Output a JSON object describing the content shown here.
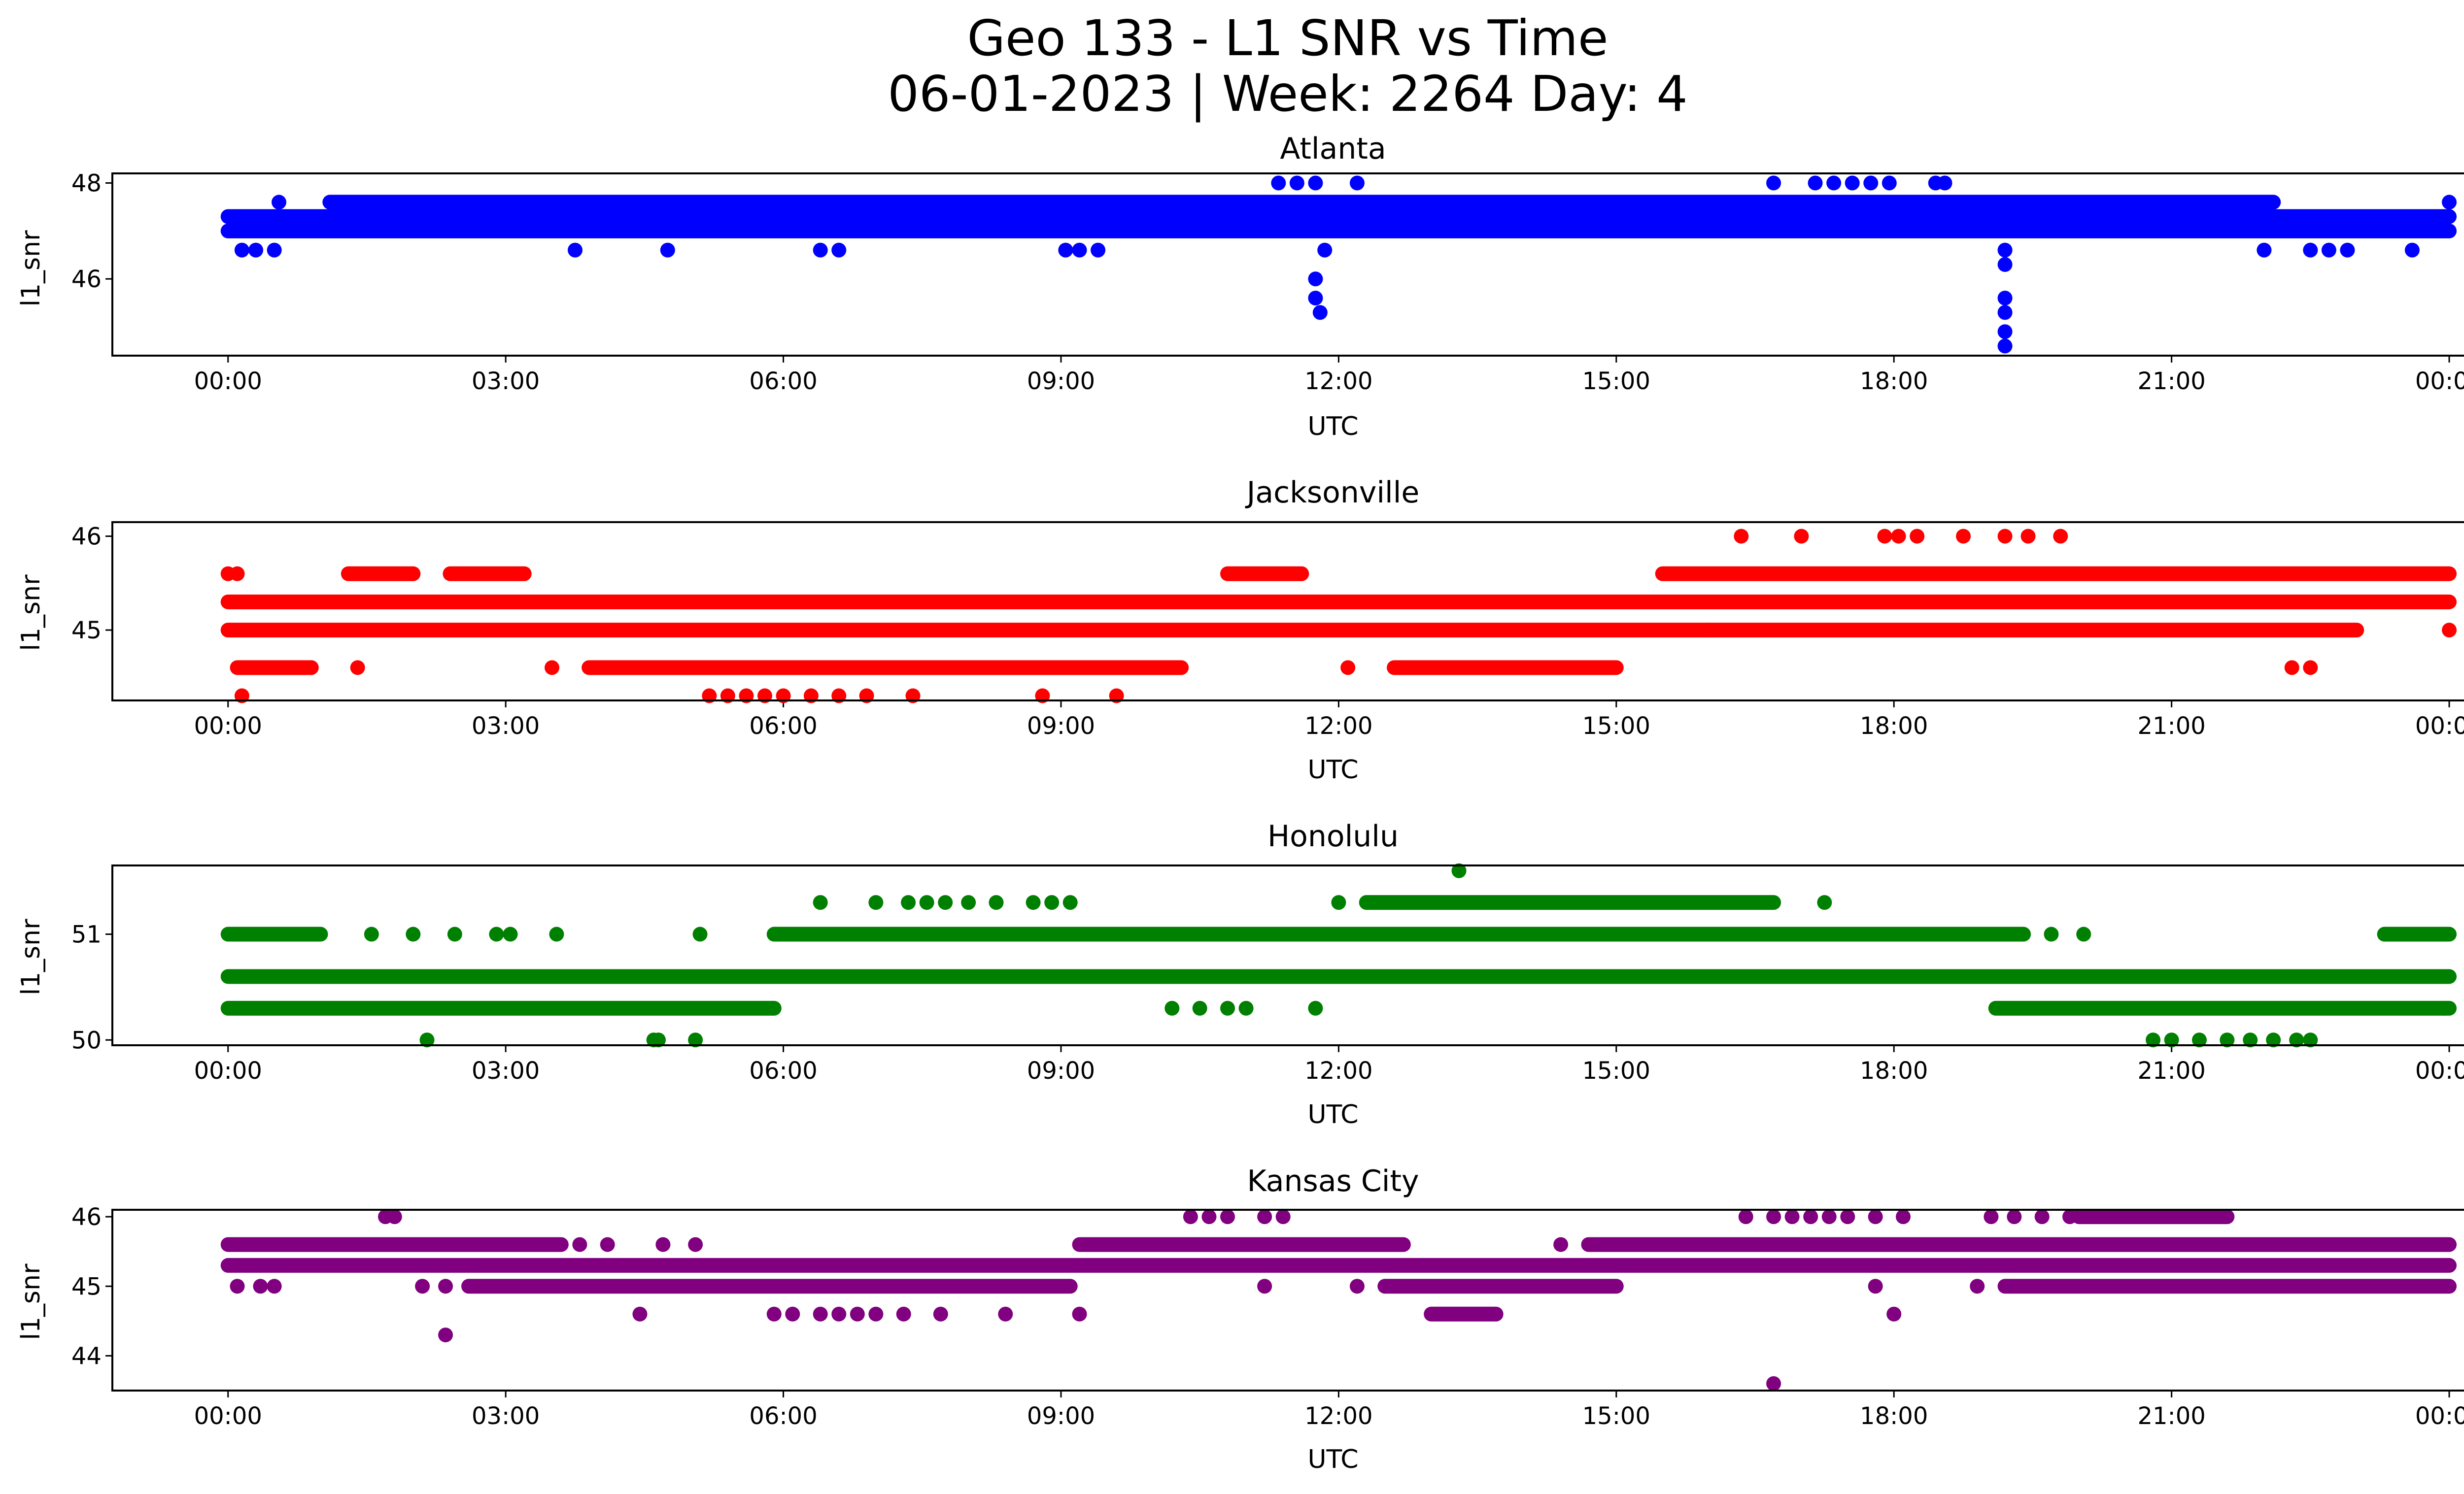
{
  "figure": {
    "title_line1": "Geo 133 - L1 SNR vs Time",
    "title_line2": "06-01-2023 | Week: 2264 Day: 4"
  },
  "chart_data": [
    {
      "type": "scatter",
      "title": "Atlanta",
      "xlabel": "UTC",
      "ylabel": "l1_snr",
      "color": "#0000ff",
      "x_unit": "hours UTC",
      "xlim": [
        -1.25,
        25.15
      ],
      "ylim": [
        44.4,
        48.2
      ],
      "x_ticks": [
        0,
        3,
        6,
        9,
        12,
        15,
        18,
        21,
        24
      ],
      "x_tick_labels": [
        "00:00",
        "03:00",
        "06:00",
        "09:00",
        "12:00",
        "15:00",
        "18:00",
        "21:00",
        "00:00"
      ],
      "y_ticks": [
        46,
        48
      ],
      "y_tick_labels": [
        "46",
        "48"
      ],
      "bands": [
        {
          "y": 47.0,
          "x_start": 0,
          "x_end": 24
        },
        {
          "y": 47.3,
          "x_start": 0,
          "x_end": 24
        },
        {
          "y": 47.6,
          "x_start": 1.1,
          "x_end": 22.1
        }
      ],
      "points": [
        {
          "x": 0.15,
          "y": 46.6
        },
        {
          "x": 0.3,
          "y": 46.6
        },
        {
          "x": 0.5,
          "y": 46.6
        },
        {
          "x": 0.55,
          "y": 47.6
        },
        {
          "x": 3.75,
          "y": 46.6
        },
        {
          "x": 4.75,
          "y": 46.6
        },
        {
          "x": 5.8,
          "y": 47.6
        },
        {
          "x": 6.4,
          "y": 46.6
        },
        {
          "x": 6.6,
          "y": 46.6
        },
        {
          "x": 9.05,
          "y": 46.6
        },
        {
          "x": 9.2,
          "y": 46.6
        },
        {
          "x": 9.4,
          "y": 46.6
        },
        {
          "x": 11.35,
          "y": 48.0
        },
        {
          "x": 11.55,
          "y": 48.0
        },
        {
          "x": 11.75,
          "y": 48.0
        },
        {
          "x": 11.75,
          "y": 46.0
        },
        {
          "x": 11.75,
          "y": 45.6
        },
        {
          "x": 11.8,
          "y": 45.3
        },
        {
          "x": 11.85,
          "y": 46.6
        },
        {
          "x": 12.2,
          "y": 48.0
        },
        {
          "x": 16.7,
          "y": 48.0
        },
        {
          "x": 17.15,
          "y": 48.0
        },
        {
          "x": 17.35,
          "y": 48.0
        },
        {
          "x": 17.55,
          "y": 48.0
        },
        {
          "x": 17.75,
          "y": 48.0
        },
        {
          "x": 17.95,
          "y": 48.0
        },
        {
          "x": 18.45,
          "y": 48.0
        },
        {
          "x": 18.55,
          "y": 48.0
        },
        {
          "x": 19.2,
          "y": 46.6
        },
        {
          "x": 19.2,
          "y": 46.3
        },
        {
          "x": 19.2,
          "y": 45.6
        },
        {
          "x": 19.2,
          "y": 45.3
        },
        {
          "x": 19.2,
          "y": 44.9
        },
        {
          "x": 19.2,
          "y": 44.6
        },
        {
          "x": 22.0,
          "y": 46.6
        },
        {
          "x": 22.5,
          "y": 46.6
        },
        {
          "x": 22.7,
          "y": 46.6
        },
        {
          "x": 22.9,
          "y": 46.6
        },
        {
          "x": 23.6,
          "y": 46.6
        },
        {
          "x": 24.0,
          "y": 47.6
        }
      ]
    },
    {
      "type": "scatter",
      "title": "Jacksonville",
      "xlabel": "UTC",
      "ylabel": "l1_snr",
      "color": "#ff0000",
      "x_unit": "hours UTC",
      "xlim": [
        -1.25,
        25.15
      ],
      "ylim": [
        44.25,
        46.15
      ],
      "x_ticks": [
        0,
        3,
        6,
        9,
        12,
        15,
        18,
        21,
        24
      ],
      "x_tick_labels": [
        "00:00",
        "03:00",
        "06:00",
        "09:00",
        "12:00",
        "15:00",
        "18:00",
        "21:00",
        "00:00"
      ],
      "y_ticks": [
        45,
        46
      ],
      "y_tick_labels": [
        "45",
        "46"
      ],
      "bands": [
        {
          "y": 45.0,
          "x_start": 0,
          "x_end": 16.0
        },
        {
          "y": 45.3,
          "x_start": 0,
          "x_end": 24
        },
        {
          "y": 45.6,
          "x_start": 15.5,
          "x_end": 24
        },
        {
          "y": 45.6,
          "x_start": 1.3,
          "x_end": 2.0
        },
        {
          "y": 45.6,
          "x_start": 2.4,
          "x_end": 3.2
        },
        {
          "y": 45.6,
          "x_start": 10.8,
          "x_end": 11.6
        },
        {
          "y": 44.6,
          "x_start": 0.1,
          "x_end": 0.9
        },
        {
          "y": 44.6,
          "x_start": 3.9,
          "x_end": 10.3
        },
        {
          "y": 44.6,
          "x_start": 12.6,
          "x_end": 15.0
        },
        {
          "y": 45.0,
          "x_start": 16.0,
          "x_end": 23.0
        }
      ],
      "points": [
        {
          "x": 0.0,
          "y": 45.6
        },
        {
          "x": 0.1,
          "y": 45.6
        },
        {
          "x": 0.15,
          "y": 44.3
        },
        {
          "x": 1.4,
          "y": 44.6
        },
        {
          "x": 3.5,
          "y": 44.6
        },
        {
          "x": 5.2,
          "y": 44.3
        },
        {
          "x": 5.4,
          "y": 44.3
        },
        {
          "x": 5.6,
          "y": 44.3
        },
        {
          "x": 5.8,
          "y": 44.3
        },
        {
          "x": 6.0,
          "y": 44.3
        },
        {
          "x": 6.3,
          "y": 44.3
        },
        {
          "x": 6.6,
          "y": 44.3
        },
        {
          "x": 6.9,
          "y": 44.3
        },
        {
          "x": 7.4,
          "y": 44.3
        },
        {
          "x": 8.8,
          "y": 44.3
        },
        {
          "x": 9.6,
          "y": 44.3
        },
        {
          "x": 5.1,
          "y": 45.3
        },
        {
          "x": 5.8,
          "y": 45.3
        },
        {
          "x": 6.4,
          "y": 45.3
        },
        {
          "x": 7.3,
          "y": 45.3
        },
        {
          "x": 12.1,
          "y": 44.6
        },
        {
          "x": 16.35,
          "y": 46.0
        },
        {
          "x": 17.0,
          "y": 46.0
        },
        {
          "x": 17.9,
          "y": 46.0
        },
        {
          "x": 18.05,
          "y": 46.0
        },
        {
          "x": 18.25,
          "y": 46.0
        },
        {
          "x": 18.75,
          "y": 46.0
        },
        {
          "x": 19.2,
          "y": 46.0
        },
        {
          "x": 19.45,
          "y": 46.0
        },
        {
          "x": 19.8,
          "y": 46.0
        },
        {
          "x": 22.3,
          "y": 44.6
        },
        {
          "x": 22.5,
          "y": 44.6
        },
        {
          "x": 24.0,
          "y": 45.0
        }
      ]
    },
    {
      "type": "scatter",
      "title": "Honolulu",
      "xlabel": "UTC",
      "ylabel": "l1_snr",
      "color": "#008000",
      "x_unit": "hours UTC",
      "xlim": [
        -1.25,
        25.15
      ],
      "ylim": [
        49.95,
        51.65
      ],
      "x_ticks": [
        0,
        3,
        6,
        9,
        12,
        15,
        18,
        21,
        24
      ],
      "x_tick_labels": [
        "00:00",
        "03:00",
        "06:00",
        "09:00",
        "12:00",
        "15:00",
        "18:00",
        "21:00",
        "00:00"
      ],
      "y_ticks": [
        50,
        51
      ],
      "y_tick_labels": [
        "50",
        "51"
      ],
      "bands": [
        {
          "y": 50.6,
          "x_start": 0,
          "x_end": 24
        },
        {
          "y": 51.0,
          "x_start": 5.9,
          "x_end": 19.4
        },
        {
          "y": 51.0,
          "x_start": 0.0,
          "x_end": 1.0
        },
        {
          "y": 51.0,
          "x_start": 23.3,
          "x_end": 24
        },
        {
          "y": 50.3,
          "x_start": 0,
          "x_end": 5.9
        },
        {
          "y": 50.3,
          "x_start": 19.1,
          "x_end": 24
        },
        {
          "y": 51.3,
          "x_start": 12.3,
          "x_end": 16.7
        }
      ],
      "points": [
        {
          "x": 1.55,
          "y": 51.0
        },
        {
          "x": 2.0,
          "y": 51.0
        },
        {
          "x": 2.45,
          "y": 51.0
        },
        {
          "x": 2.9,
          "y": 51.0
        },
        {
          "x": 3.05,
          "y": 51.0
        },
        {
          "x": 3.55,
          "y": 51.0
        },
        {
          "x": 5.1,
          "y": 51.0
        },
        {
          "x": 2.15,
          "y": 50.0
        },
        {
          "x": 4.6,
          "y": 50.0
        },
        {
          "x": 4.65,
          "y": 50.0
        },
        {
          "x": 5.05,
          "y": 50.0
        },
        {
          "x": 6.4,
          "y": 51.3
        },
        {
          "x": 7.0,
          "y": 51.3
        },
        {
          "x": 7.35,
          "y": 51.3
        },
        {
          "x": 7.55,
          "y": 51.3
        },
        {
          "x": 7.75,
          "y": 51.3
        },
        {
          "x": 8.0,
          "y": 51.3
        },
        {
          "x": 8.3,
          "y": 51.3
        },
        {
          "x": 8.7,
          "y": 51.3
        },
        {
          "x": 8.9,
          "y": 51.3
        },
        {
          "x": 9.1,
          "y": 51.3
        },
        {
          "x": 10.2,
          "y": 50.3
        },
        {
          "x": 10.5,
          "y": 50.3
        },
        {
          "x": 10.8,
          "y": 50.3
        },
        {
          "x": 11.0,
          "y": 50.3
        },
        {
          "x": 11.75,
          "y": 50.3
        },
        {
          "x": 12.0,
          "y": 51.3
        },
        {
          "x": 13.3,
          "y": 51.6
        },
        {
          "x": 13.85,
          "y": 50.6
        },
        {
          "x": 17.25,
          "y": 51.3
        },
        {
          "x": 19.7,
          "y": 51.0
        },
        {
          "x": 20.05,
          "y": 51.0
        },
        {
          "x": 20.8,
          "y": 50.0
        },
        {
          "x": 21.0,
          "y": 50.0
        },
        {
          "x": 21.3,
          "y": 50.0
        },
        {
          "x": 21.6,
          "y": 50.0
        },
        {
          "x": 21.85,
          "y": 50.0
        },
        {
          "x": 22.1,
          "y": 50.0
        },
        {
          "x": 22.35,
          "y": 50.0
        },
        {
          "x": 22.5,
          "y": 50.0
        },
        {
          "x": 23.95,
          "y": 50.3
        }
      ]
    },
    {
      "type": "scatter",
      "title": "Kansas City",
      "xlabel": "UTC",
      "ylabel": "l1_snr",
      "color": "#800080",
      "x_unit": "hours UTC",
      "xlim": [
        -1.25,
        25.15
      ],
      "ylim": [
        43.5,
        46.1
      ],
      "x_ticks": [
        0,
        3,
        6,
        9,
        12,
        15,
        18,
        21,
        24
      ],
      "x_tick_labels": [
        "00:00",
        "03:00",
        "06:00",
        "09:00",
        "12:00",
        "15:00",
        "18:00",
        "21:00",
        "00:00"
      ],
      "y_ticks": [
        44,
        45,
        46
      ],
      "y_tick_labels": [
        "44",
        "45",
        "46"
      ],
      "bands": [
        {
          "y": 45.3,
          "x_start": 0,
          "x_end": 24
        },
        {
          "y": 45.6,
          "x_start": 0,
          "x_end": 3.6
        },
        {
          "y": 45.6,
          "x_start": 9.2,
          "x_end": 12.7
        },
        {
          "y": 45.6,
          "x_start": 14.7,
          "x_end": 24
        },
        {
          "y": 45.0,
          "x_start": 2.6,
          "x_end": 9.1
        },
        {
          "y": 45.0,
          "x_start": 12.5,
          "x_end": 15.0
        },
        {
          "y": 45.0,
          "x_start": 19.2,
          "x_end": 24
        },
        {
          "y": 44.6,
          "x_start": 13.0,
          "x_end": 13.7
        },
        {
          "y": 46.0,
          "x_start": 20.0,
          "x_end": 21.6
        }
      ],
      "points": [
        {
          "x": 0.1,
          "y": 45.0
        },
        {
          "x": 0.35,
          "y": 45.0
        },
        {
          "x": 0.5,
          "y": 45.0
        },
        {
          "x": 1.7,
          "y": 46.0
        },
        {
          "x": 1.8,
          "y": 46.0
        },
        {
          "x": 2.1,
          "y": 45.0
        },
        {
          "x": 2.35,
          "y": 44.3
        },
        {
          "x": 2.35,
          "y": 45.0
        },
        {
          "x": 3.8,
          "y": 45.6
        },
        {
          "x": 4.1,
          "y": 45.6
        },
        {
          "x": 4.45,
          "y": 44.6
        },
        {
          "x": 4.7,
          "y": 45.6
        },
        {
          "x": 5.05,
          "y": 45.6
        },
        {
          "x": 5.9,
          "y": 44.6
        },
        {
          "x": 6.1,
          "y": 44.6
        },
        {
          "x": 6.4,
          "y": 44.6
        },
        {
          "x": 6.6,
          "y": 44.6
        },
        {
          "x": 6.8,
          "y": 44.6
        },
        {
          "x": 7.0,
          "y": 44.6
        },
        {
          "x": 7.3,
          "y": 44.6
        },
        {
          "x": 7.7,
          "y": 44.6
        },
        {
          "x": 8.4,
          "y": 44.6
        },
        {
          "x": 9.2,
          "y": 44.6
        },
        {
          "x": 10.4,
          "y": 46.0
        },
        {
          "x": 10.6,
          "y": 46.0
        },
        {
          "x": 10.8,
          "y": 46.0
        },
        {
          "x": 11.2,
          "y": 46.0
        },
        {
          "x": 11.4,
          "y": 46.0
        },
        {
          "x": 11.2,
          "y": 45.0
        },
        {
          "x": 12.2,
          "y": 45.0
        },
        {
          "x": 14.4,
          "y": 45.6
        },
        {
          "x": 16.4,
          "y": 46.0
        },
        {
          "x": 16.7,
          "y": 46.0
        },
        {
          "x": 16.9,
          "y": 46.0
        },
        {
          "x": 17.1,
          "y": 46.0
        },
        {
          "x": 17.3,
          "y": 46.0
        },
        {
          "x": 17.5,
          "y": 46.0
        },
        {
          "x": 17.8,
          "y": 46.0
        },
        {
          "x": 18.1,
          "y": 46.0
        },
        {
          "x": 16.7,
          "y": 43.6
        },
        {
          "x": 17.8,
          "y": 45.0
        },
        {
          "x": 18.0,
          "y": 44.6
        },
        {
          "x": 18.9,
          "y": 45.0
        },
        {
          "x": 19.05,
          "y": 46.0
        },
        {
          "x": 19.3,
          "y": 46.0
        },
        {
          "x": 19.6,
          "y": 46.0
        },
        {
          "x": 19.9,
          "y": 46.0
        }
      ]
    }
  ]
}
